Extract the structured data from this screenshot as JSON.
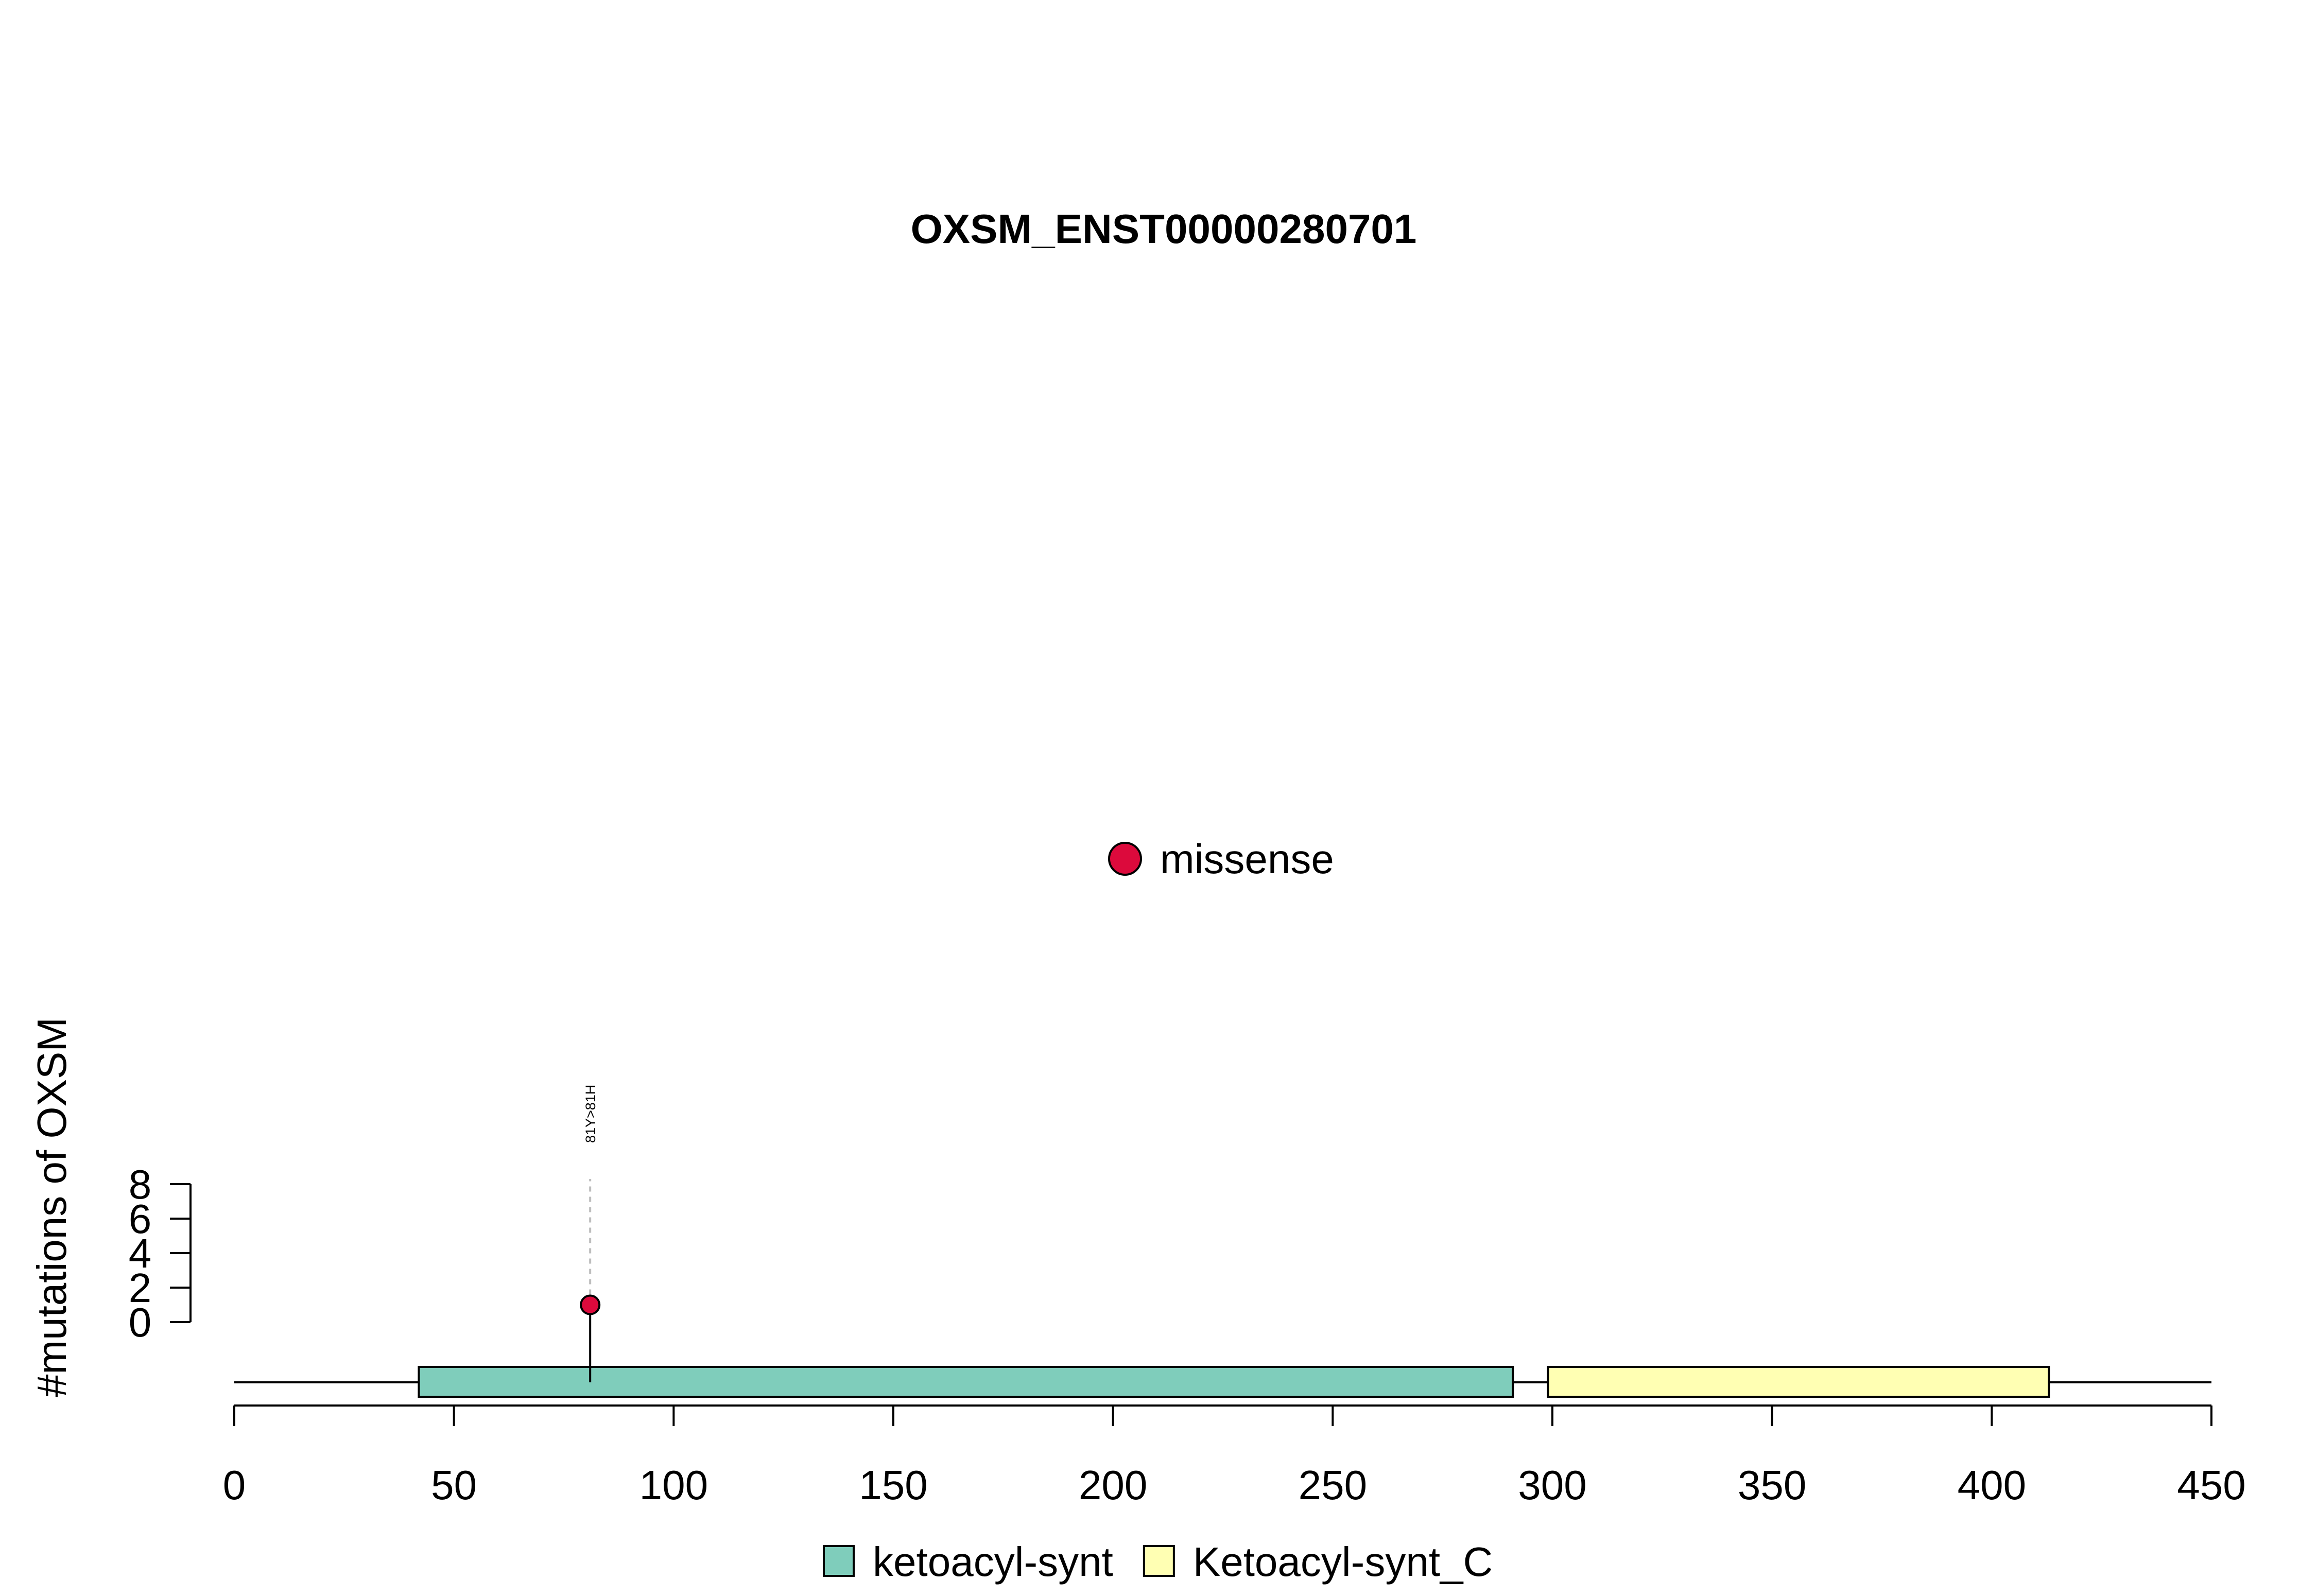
{
  "chart_data": {
    "type": "scatter",
    "title": "OXSM_ENST00000280701",
    "xlabel": "",
    "ylabel": "#mutations of OXSM",
    "xlim": [
      0,
      450
    ],
    "ylim": [
      0,
      8
    ],
    "x_ticks": [
      "0",
      "50",
      "100",
      "150",
      "200",
      "250",
      "300",
      "350",
      "400",
      "450"
    ],
    "y_ticks": [
      "0",
      "2",
      "4",
      "6",
      "8"
    ],
    "protein_length": 450,
    "domains": [
      {
        "name": "ketoacyl-synt",
        "start": 42,
        "end": 291,
        "color": "#7fcdbb"
      },
      {
        "name": "Ketoacyl-synt_C",
        "start": 299,
        "end": 413,
        "color": "#ffffb3"
      }
    ],
    "mutations": [
      {
        "position": 81,
        "count": 1,
        "label": "81Y>81H",
        "type": "missense"
      }
    ],
    "mutation_types": [
      {
        "name": "missense",
        "color": "#dc0a3c"
      }
    ],
    "domain_legend": [
      {
        "name": "ketoacyl-synt",
        "color": "#7fcdbb"
      },
      {
        "name": "Ketoacyl-synt_C",
        "color": "#ffffb3"
      }
    ]
  }
}
